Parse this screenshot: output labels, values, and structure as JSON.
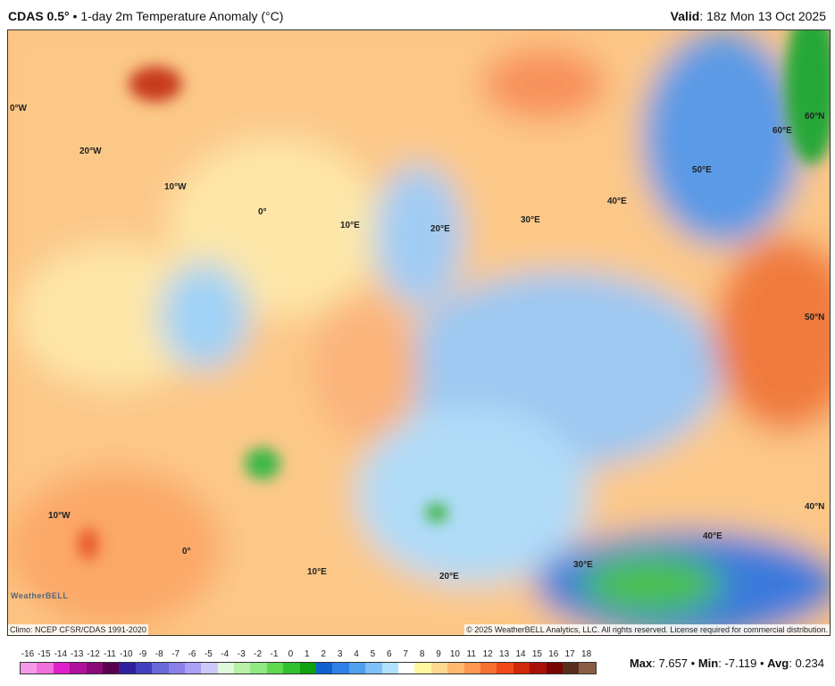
{
  "header": {
    "model": "CDAS 0.5°",
    "bullet": "•",
    "title": "1-day 2m Temperature Anomaly (°C)",
    "valid_label": "Valid",
    "valid_value": "18z Mon 13 Oct 2025"
  },
  "map_labels": [
    "0°W",
    "20°W",
    "10°W",
    "0°",
    "10°E",
    "20°E",
    "30°E",
    "40°E",
    "50°E",
    "60°E",
    "60°N",
    "50°N",
    "40°N",
    "40°E",
    "30°E",
    "20°E",
    "10°E",
    "0°",
    "10°W"
  ],
  "footer": {
    "climo": "Climo: NCEP CFSR/CDAS 1991-2020",
    "copyright": "© 2025 WeatherBELL Analytics, LLC. All rights reserved. License required for commercial distribution.",
    "logo": "WeatherBELL"
  },
  "colorbar": {
    "ticks": [
      "-16",
      "-15",
      "-14",
      "-13",
      "-12",
      "-11",
      "-10",
      "-9",
      "-8",
      "-7",
      "-6",
      "-5",
      "-4",
      "-3",
      "-2",
      "-1",
      "0",
      "1",
      "2",
      "3",
      "4",
      "5",
      "6",
      "7",
      "8",
      "9",
      "10",
      "11",
      "12",
      "13",
      "14",
      "15",
      "16",
      "17",
      "18"
    ],
    "colors": [
      "#f59ae8",
      "#f070dc",
      "#e020c8",
      "#b0109c",
      "#8a0a78",
      "#5a0050",
      "#3020a0",
      "#4040c0",
      "#6868d8",
      "#8a80e8",
      "#aaa0f4",
      "#ccc8fa",
      "#e0f8dc",
      "#b8f0a8",
      "#90e880",
      "#60d850",
      "#30c030",
      "#10a010",
      "#1060d0",
      "#3080e8",
      "#50a0f0",
      "#80c0f8",
      "#b0e0fc",
      "#ffffff",
      "#fff8a0",
      "#ffd890",
      "#ffb870",
      "#ff9850",
      "#f87030",
      "#f04818",
      "#d02808",
      "#a81008",
      "#780404",
      "#5a2e1c",
      "#8a5e44"
    ]
  },
  "stats": {
    "max_label": "Max",
    "max": "7.657",
    "min_label": "Min",
    "min": "-7.119",
    "avg_label": "Avg",
    "avg": "0.234"
  }
}
